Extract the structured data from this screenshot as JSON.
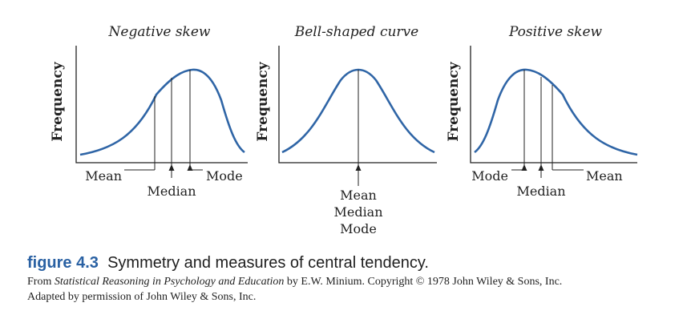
{
  "panels": [
    {
      "title": "Negative skew",
      "ylabel": "Frequency",
      "labels": {
        "left": "Mean",
        "middle": "Median",
        "right": "Mode"
      }
    },
    {
      "title": "Bell-shaped curve",
      "ylabel": "Frequency",
      "labels": {
        "stack1": "Mean",
        "stack2": "Median",
        "stack3": "Mode"
      }
    },
    {
      "title": "Positive skew",
      "ylabel": "Frequency",
      "labels": {
        "left": "Mode",
        "middle": "Median",
        "right": "Mean"
      }
    }
  ],
  "caption": {
    "figure_word": "figure",
    "figure_number": "4.3",
    "title": "Symmetry and measures of central tendency.",
    "source_prefix": "From ",
    "source_book": "Statistical Reasoning in Psychology and Education",
    "source_suffix": " by E.W. Minium. Copyright © 1978 John Wiley & Sons, Inc.",
    "source_line2": "Adapted by permission of John Wiley & Sons, Inc."
  },
  "colors": {
    "curve": "#2f65a6",
    "figure_label": "#2a61a3",
    "text": "#222222"
  }
}
